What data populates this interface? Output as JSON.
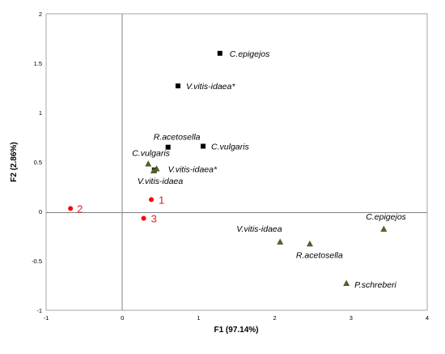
{
  "chart_data": {
    "type": "scatter",
    "xlabel": "F1 (97.14%)",
    "ylabel": "F2 (2.86%)",
    "xlim": [
      -1,
      4
    ],
    "ylim": [
      -1,
      2
    ],
    "x_ticks": [
      -1,
      0,
      1,
      2,
      3,
      4
    ],
    "y_ticks": [
      -1,
      -0.5,
      0,
      0.5,
      1,
      1.5,
      2
    ],
    "grid": false,
    "series": [
      {
        "marker": "square",
        "color": "#000000",
        "points": [
          {
            "x": 1.28,
            "y": 1.6,
            "label": "C.epigejos"
          },
          {
            "x": 0.73,
            "y": 1.27,
            "label": "V.vitis-idaea*"
          },
          {
            "x": 0.6,
            "y": 0.65,
            "label": "R.acetosella"
          },
          {
            "x": 1.06,
            "y": 0.66,
            "label": "C.vulgaris"
          },
          {
            "x": 0.42,
            "y": 0.42,
            "label": ""
          }
        ]
      },
      {
        "marker": "triangle",
        "color": "#4f6228",
        "points": [
          {
            "x": 0.34,
            "y": 0.48,
            "label": "C.vulgaris"
          },
          {
            "x": 0.45,
            "y": 0.43,
            "label": "V.vitis-idaea*"
          },
          {
            "x": 0.41,
            "y": 0.41,
            "label": "V.vitis-idaea"
          },
          {
            "x": 3.43,
            "y": -0.18,
            "label": "C.epigejos"
          },
          {
            "x": 2.07,
            "y": -0.31,
            "label": "V.vitis-idaea"
          },
          {
            "x": 2.46,
            "y": -0.33,
            "label": "R.acetosella"
          },
          {
            "x": 2.94,
            "y": -0.73,
            "label": "P.schreberi"
          }
        ]
      },
      {
        "marker": "circle",
        "color": "#ff0000",
        "points": [
          {
            "x": 0.38,
            "y": 0.12,
            "label": "1"
          },
          {
            "x": -0.68,
            "y": 0.03,
            "label": "2"
          },
          {
            "x": 0.28,
            "y": -0.07,
            "label": "3"
          }
        ]
      }
    ]
  }
}
